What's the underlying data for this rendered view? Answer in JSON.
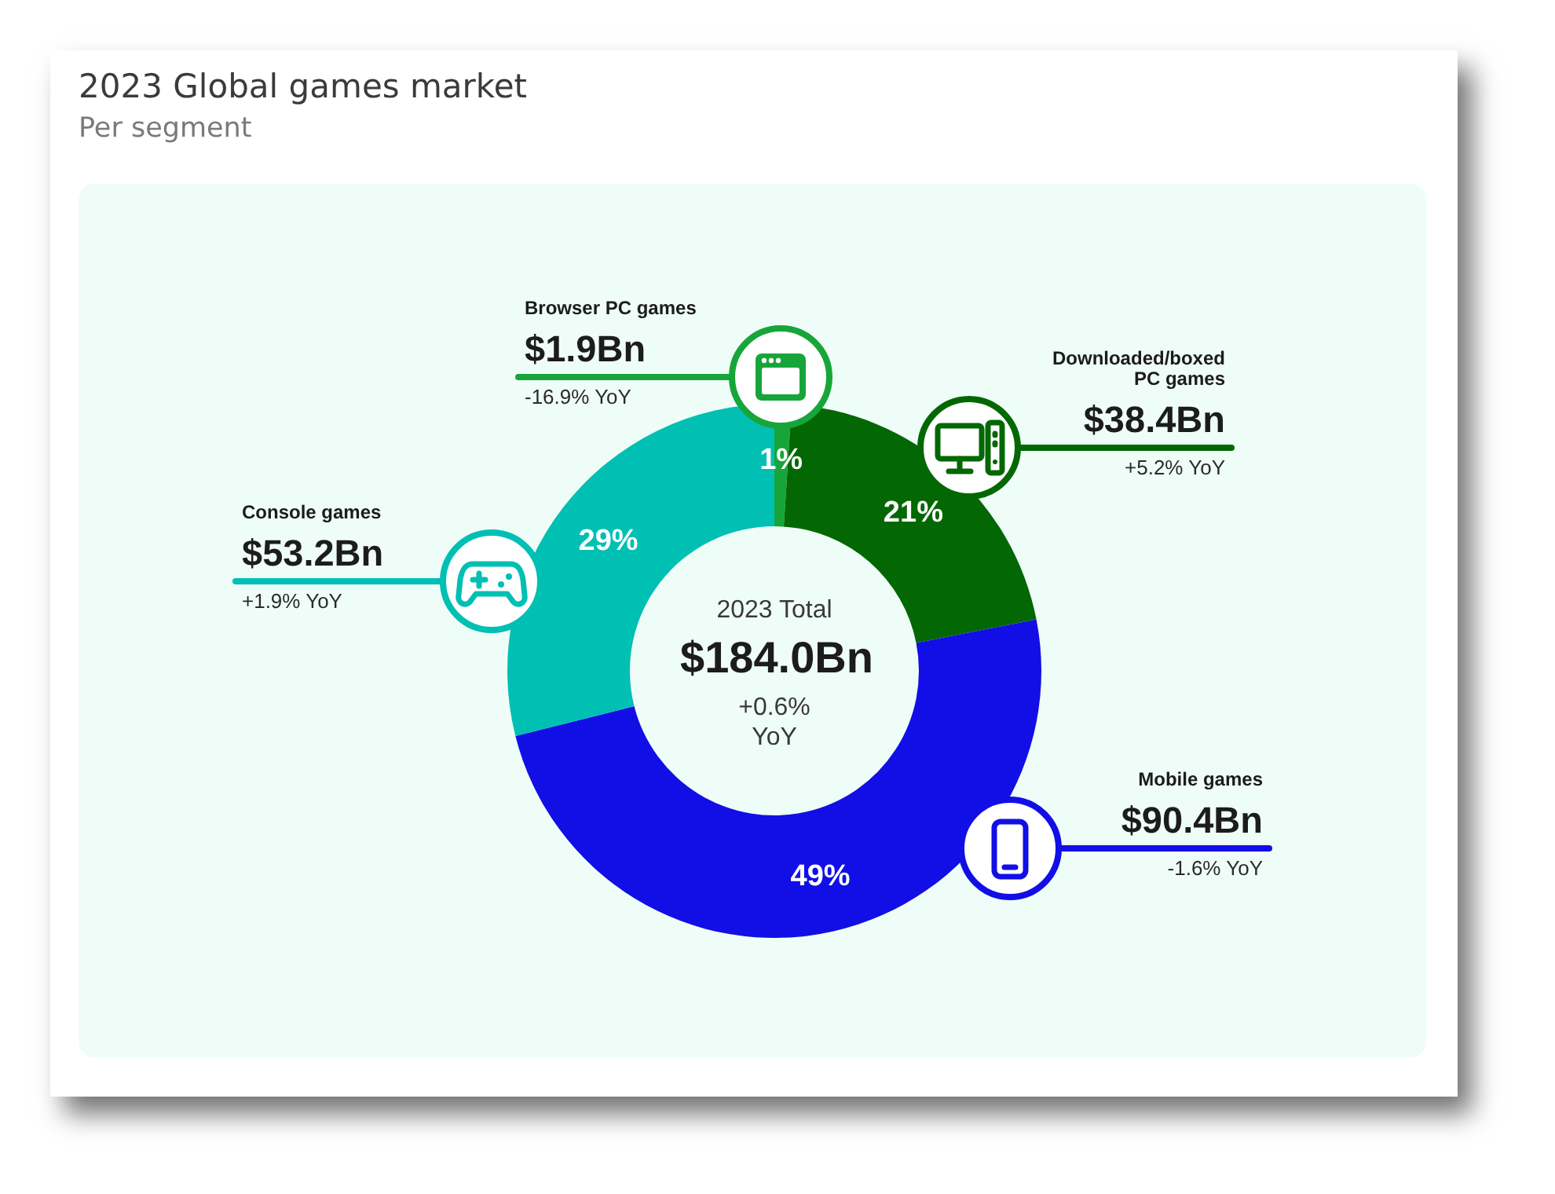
{
  "chart_data": {
    "type": "donut",
    "title": "2023 Global games market",
    "subtitle": "Per segment",
    "categories": [
      "Browser PC games",
      "Downloaded/boxed PC games",
      "Mobile games",
      "Console games"
    ],
    "values": [
      1.9,
      38.4,
      90.4,
      53.2
    ],
    "colors": [
      "#17a53a",
      "#036803",
      "#110fe6",
      "#00bfb3"
    ],
    "value_labels": [
      "$1.9Bn",
      "$38.4Bn",
      "$90.4Bn",
      "$53.2Bn"
    ],
    "annotations": [
      {
        "text": "1%",
        "x": "Browser PC games"
      },
      {
        "text": "-16.9% YoY",
        "x": "Browser PC games"
      },
      {
        "text": "21%",
        "x": "Downloaded/boxed PC games"
      },
      {
        "text": "+5.2% YoY",
        "x": "Downloaded/boxed PC games"
      },
      {
        "text": "49%",
        "x": "Mobile games"
      },
      {
        "text": "-1.6% YoY",
        "x": "Mobile games"
      },
      {
        "text": "29%",
        "x": "Console games"
      },
      {
        "text": "+1.9% YoY",
        "x": "Console games"
      },
      "2023 Total",
      "$184.0Bn",
      "+0.6% YoY"
    ]
  }
}
